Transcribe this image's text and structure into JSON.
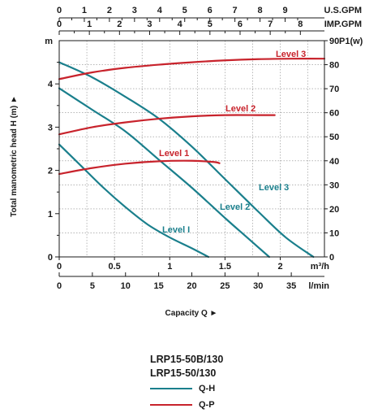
{
  "chart_data": {
    "type": "line",
    "xlabel": "Capacity Q ►",
    "ylabel": "Total manometric head H (m) ►",
    "xlim": [
      0,
      2.4
    ],
    "ylim": [
      0,
      5
    ],
    "y2lim": [
      0,
      90
    ],
    "grid": true,
    "x_ticks": [
      "0",
      "0.5",
      "1",
      "1.5",
      "2"
    ],
    "x_unit": "m³/h",
    "lmin_ticks": [
      "0",
      "5",
      "10",
      "15",
      "20",
      "25",
      "30",
      "35"
    ],
    "lmin_unit": "l/min",
    "usgpm_ticks": [
      "0",
      "1",
      "2",
      "3",
      "4",
      "5",
      "6",
      "7",
      "8",
      "9"
    ],
    "usgpm_unit": "U.S.GPM",
    "impgpm_ticks": [
      "0",
      "1",
      "2",
      "3",
      "4",
      "5",
      "6",
      "7",
      "8"
    ],
    "impgpm_unit": "IMP.GPM",
    "y_ticks": [
      "0",
      "1",
      "2",
      "3",
      "4"
    ],
    "y_unit": "m",
    "y2_ticks": [
      "0",
      "10",
      "20",
      "30",
      "40",
      "50",
      "60",
      "70",
      "80",
      "90"
    ],
    "y2_unit": "P1(w)",
    "colors": {
      "qh": "#1a7f8c",
      "qp": "#c8232c"
    },
    "qh_series": [
      {
        "name": "Level 3",
        "points": [
          [
            0,
            4.5
          ],
          [
            0.3,
            4.15
          ],
          [
            0.6,
            3.7
          ],
          [
            0.9,
            3.2
          ],
          [
            1.2,
            2.55
          ],
          [
            1.5,
            1.8
          ],
          [
            1.8,
            1.05
          ],
          [
            2.05,
            0.45
          ],
          [
            2.3,
            0.0
          ]
        ]
      },
      {
        "name": "Level 2",
        "points": [
          [
            0,
            3.9
          ],
          [
            0.3,
            3.4
          ],
          [
            0.6,
            2.9
          ],
          [
            0.9,
            2.25
          ],
          [
            1.2,
            1.6
          ],
          [
            1.5,
            0.9
          ],
          [
            1.7,
            0.45
          ],
          [
            1.9,
            0.0
          ]
        ]
      },
      {
        "name": "Level I",
        "points": [
          [
            0,
            2.6
          ],
          [
            0.2,
            2.1
          ],
          [
            0.4,
            1.6
          ],
          [
            0.6,
            1.15
          ],
          [
            0.8,
            0.75
          ],
          [
            1.0,
            0.45
          ],
          [
            1.2,
            0.2
          ],
          [
            1.35,
            0.0
          ]
        ]
      }
    ],
    "qp_series": [
      {
        "name": "Level 3",
        "points": [
          [
            0,
            74
          ],
          [
            0.3,
            76.8
          ],
          [
            0.6,
            78.7
          ],
          [
            0.9,
            80
          ],
          [
            1.2,
            81
          ],
          [
            1.5,
            81.8
          ],
          [
            1.8,
            82.3
          ],
          [
            2.1,
            82.5
          ],
          [
            2.4,
            82.5
          ]
        ]
      },
      {
        "name": "Level 2",
        "points": [
          [
            0,
            51
          ],
          [
            0.3,
            54
          ],
          [
            0.6,
            56
          ],
          [
            0.9,
            57.5
          ],
          [
            1.2,
            58.5
          ],
          [
            1.5,
            59
          ],
          [
            1.8,
            59
          ],
          [
            1.95,
            59
          ]
        ]
      },
      {
        "name": "Level 1",
        "points": [
          [
            0,
            34.5
          ],
          [
            0.3,
            37
          ],
          [
            0.6,
            38.8
          ],
          [
            0.9,
            39.8
          ],
          [
            1.2,
            40
          ],
          [
            1.4,
            39.5
          ],
          [
            1.45,
            39
          ]
        ]
      }
    ]
  },
  "legend": {
    "models": [
      "LRP15-50B/130",
      "LRP15-50/130"
    ],
    "qh_label": "Q-H",
    "qp_label": "Q-P"
  }
}
